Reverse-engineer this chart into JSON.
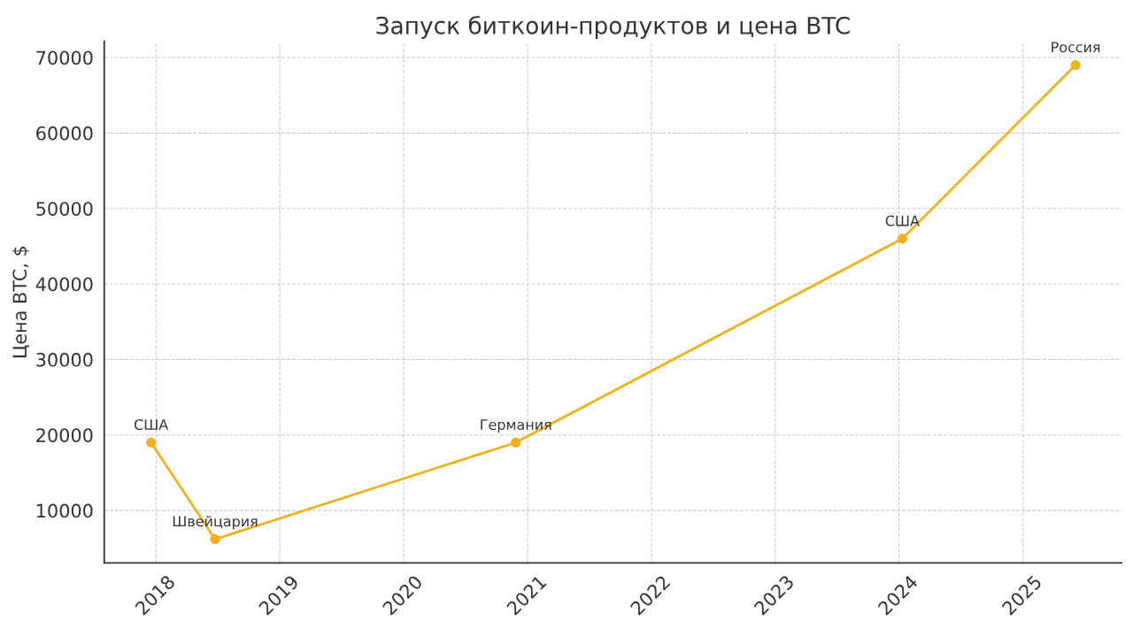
{
  "chart_data": {
    "type": "line",
    "title": "Запуск биткоин-продуктов и цена BTC",
    "ylabel": "Цена BTC, $",
    "x": [
      "2017-12-17",
      "2018-06-24",
      "2020-11-27",
      "2024-01-11",
      "2025-06-05"
    ],
    "series": [
      {
        "color": "#f2b01c",
        "values": [
          19000,
          6200,
          19000,
          46000,
          69000
        ]
      }
    ],
    "annotations": [
      {
        "text": "США",
        "x": "2017-12-17",
        "y": 19000
      },
      {
        "text": "Швейцария",
        "x": "2018-06-24",
        "y": 6200
      },
      {
        "text": "Германия",
        "x": "2020-11-27",
        "y": 19000
      },
      {
        "text": "США",
        "x": "2024-01-11",
        "y": 46000
      },
      {
        "text": "Россия",
        "x": "2025-06-05",
        "y": 69000
      }
    ],
    "xlim": [
      "2017-08-01",
      "2025-10-19"
    ],
    "ylim": [
      3060,
      72140
    ],
    "xticks": [
      "2018",
      "2019",
      "2020",
      "2021",
      "2022",
      "2023",
      "2024",
      "2025"
    ],
    "yticks": [
      10000,
      20000,
      30000,
      40000,
      50000,
      60000,
      70000
    ],
    "grid": true,
    "marker": "circle",
    "line_style": "solid"
  }
}
